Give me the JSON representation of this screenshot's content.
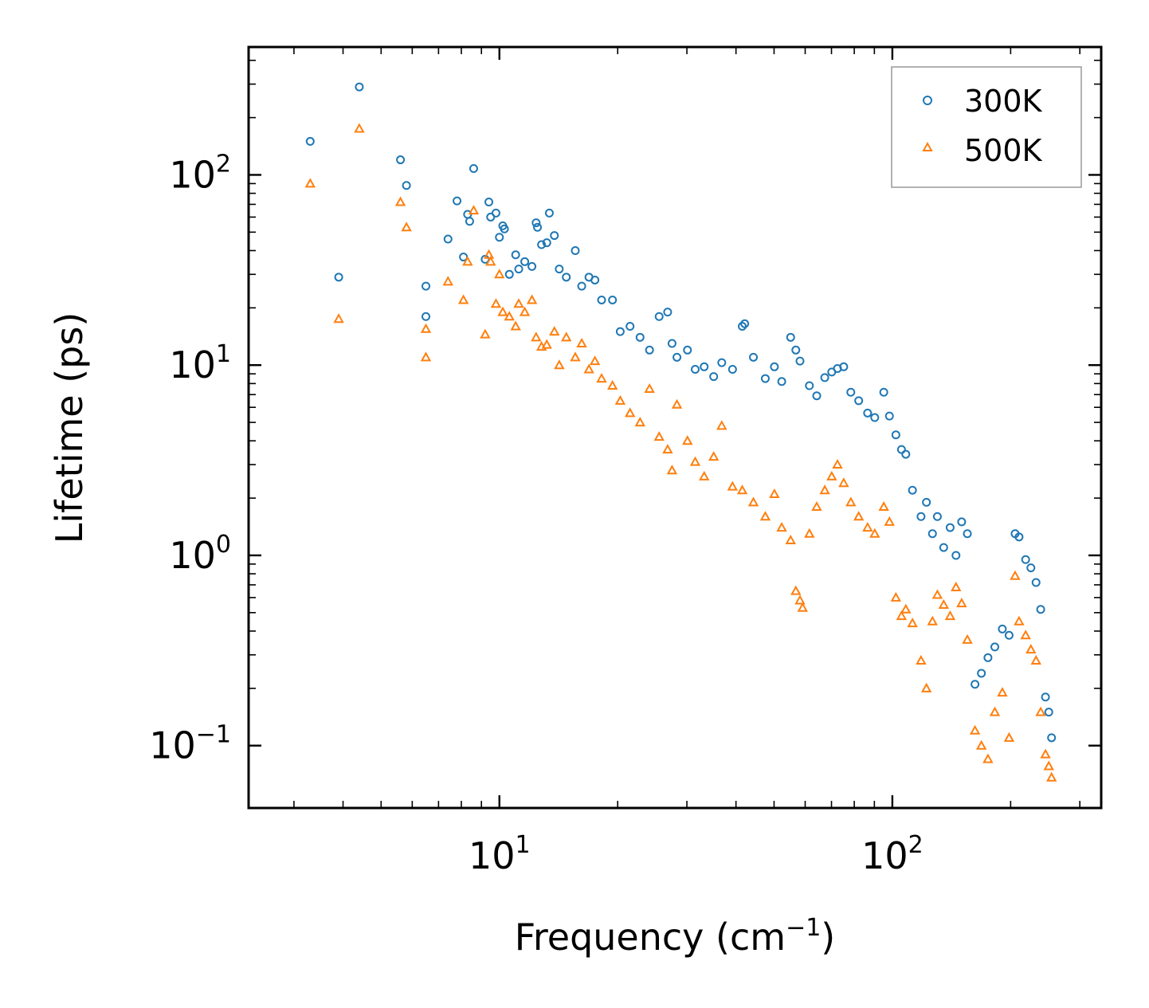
{
  "chart_data": {
    "type": "scatter",
    "xscale": "log",
    "yscale": "log",
    "xlim": [
      2.3,
      340
    ],
    "ylim": [
      0.047,
      470
    ],
    "xlabel": "Frequency (cm",
    "xlabel_sup": "−1",
    "xlabel_tail": ")",
    "ylabel": "Lifetime (ps)",
    "x_ticks": [
      {
        "value": 10,
        "base": "10",
        "exp": "1"
      },
      {
        "value": 100,
        "base": "10",
        "exp": "2"
      }
    ],
    "y_ticks": [
      {
        "value": 0.1,
        "base": "10",
        "exp": "−1"
      },
      {
        "value": 1,
        "base": "10",
        "exp": "0"
      },
      {
        "value": 10,
        "base": "10",
        "exp": "1"
      },
      {
        "value": 100,
        "base": "10",
        "exp": "2"
      }
    ],
    "legend_position": "top-right",
    "series": [
      {
        "name": "300K",
        "marker": "circle",
        "color": "#1f77b4",
        "points": [
          [
            3.3,
            150
          ],
          [
            3.9,
            29
          ],
          [
            4.4,
            290
          ],
          [
            5.6,
            120
          ],
          [
            5.8,
            88
          ],
          [
            6.5,
            26
          ],
          [
            6.5,
            18
          ],
          [
            7.4,
            46
          ],
          [
            7.8,
            73
          ],
          [
            8.1,
            37
          ],
          [
            8.3,
            62
          ],
          [
            8.4,
            57
          ],
          [
            8.6,
            108
          ],
          [
            9.2,
            36
          ],
          [
            9.4,
            72
          ],
          [
            9.5,
            60
          ],
          [
            9.8,
            63
          ],
          [
            10.0,
            47
          ],
          [
            10.2,
            54
          ],
          [
            10.3,
            52
          ],
          [
            10.6,
            30
          ],
          [
            11.0,
            38
          ],
          [
            11.2,
            32
          ],
          [
            11.6,
            35
          ],
          [
            12.1,
            33
          ],
          [
            12.4,
            56
          ],
          [
            12.5,
            53
          ],
          [
            12.8,
            43
          ],
          [
            13.2,
            44
          ],
          [
            13.4,
            63
          ],
          [
            13.8,
            48
          ],
          [
            14.2,
            32
          ],
          [
            14.8,
            29
          ],
          [
            15.6,
            40
          ],
          [
            16.2,
            26
          ],
          [
            16.9,
            29
          ],
          [
            17.5,
            28
          ],
          [
            18.2,
            22
          ],
          [
            19.4,
            22
          ],
          [
            20.3,
            15
          ],
          [
            21.5,
            16
          ],
          [
            22.8,
            14
          ],
          [
            24.1,
            12
          ],
          [
            25.5,
            18
          ],
          [
            26.8,
            19
          ],
          [
            27.5,
            13
          ],
          [
            28.3,
            11
          ],
          [
            30.1,
            12
          ],
          [
            31.5,
            9.5
          ],
          [
            33.2,
            9.8
          ],
          [
            35.1,
            8.7
          ],
          [
            36.8,
            10.3
          ],
          [
            39.2,
            9.5
          ],
          [
            41.5,
            16
          ],
          [
            42.1,
            16.5
          ],
          [
            44.3,
            11
          ],
          [
            47.5,
            8.5
          ],
          [
            50.1,
            9.8
          ],
          [
            52.3,
            8.2
          ],
          [
            55.1,
            14
          ],
          [
            56.8,
            12
          ],
          [
            58.2,
            10.5
          ],
          [
            61.5,
            7.8
          ],
          [
            64.2,
            6.9
          ],
          [
            67.3,
            8.6
          ],
          [
            70.1,
            9.2
          ],
          [
            72.5,
            9.6
          ],
          [
            75.2,
            9.8
          ],
          [
            78.4,
            7.2
          ],
          [
            82.1,
            6.5
          ],
          [
            86.5,
            5.6
          ],
          [
            90.2,
            5.3
          ],
          [
            95.1,
            7.2
          ],
          [
            98.3,
            5.4
          ],
          [
            102.1,
            4.3
          ],
          [
            105.5,
            3.6
          ],
          [
            108.2,
            3.4
          ],
          [
            112.5,
            2.2
          ],
          [
            118.3,
            1.6
          ],
          [
            122.1,
            1.9
          ],
          [
            126.5,
            1.3
          ],
          [
            130.2,
            1.6
          ],
          [
            135.1,
            1.1
          ],
          [
            140.3,
            1.4
          ],
          [
            145.2,
            1.0
          ],
          [
            150.1,
            1.5
          ],
          [
            155.2,
            1.3
          ],
          [
            162.3,
            0.21
          ],
          [
            168.5,
            0.24
          ],
          [
            175.1,
            0.29
          ],
          [
            182.3,
            0.33
          ],
          [
            190.5,
            0.41
          ],
          [
            198.2,
            0.38
          ],
          [
            205.3,
            1.3
          ],
          [
            210.1,
            1.25
          ],
          [
            218.4,
            0.95
          ],
          [
            225.2,
            0.86
          ],
          [
            232.1,
            0.72
          ],
          [
            238.5,
            0.52
          ],
          [
            245.3,
            0.18
          ],
          [
            250.1,
            0.15
          ],
          [
            254.2,
            0.11
          ]
        ]
      },
      {
        "name": "500K",
        "marker": "triangle",
        "color": "#ff7f0e",
        "points": [
          [
            3.3,
            90
          ],
          [
            3.9,
            17.5
          ],
          [
            4.4,
            175
          ],
          [
            5.6,
            72
          ],
          [
            5.8,
            53
          ],
          [
            6.5,
            15.5
          ],
          [
            6.5,
            11
          ],
          [
            7.4,
            27.5
          ],
          [
            8.1,
            22
          ],
          [
            8.3,
            35
          ],
          [
            8.6,
            65
          ],
          [
            9.2,
            14.5
          ],
          [
            9.4,
            38
          ],
          [
            9.5,
            35
          ],
          [
            9.8,
            21
          ],
          [
            10.0,
            30
          ],
          [
            10.2,
            19
          ],
          [
            10.6,
            18
          ],
          [
            11.0,
            16
          ],
          [
            11.2,
            21
          ],
          [
            11.6,
            19
          ],
          [
            12.1,
            22
          ],
          [
            12.4,
            14
          ],
          [
            12.8,
            12.5
          ],
          [
            13.2,
            12.8
          ],
          [
            13.8,
            15
          ],
          [
            14.2,
            10
          ],
          [
            14.8,
            14
          ],
          [
            15.6,
            11
          ],
          [
            16.2,
            13
          ],
          [
            16.9,
            9.5
          ],
          [
            17.5,
            10.5
          ],
          [
            18.2,
            8.5
          ],
          [
            19.4,
            7.8
          ],
          [
            20.3,
            6.5
          ],
          [
            21.5,
            5.6
          ],
          [
            22.8,
            5.0
          ],
          [
            24.1,
            7.5
          ],
          [
            25.5,
            4.2
          ],
          [
            26.8,
            3.6
          ],
          [
            27.5,
            2.8
          ],
          [
            28.3,
            6.2
          ],
          [
            30.1,
            4.0
          ],
          [
            31.5,
            3.1
          ],
          [
            33.2,
            2.6
          ],
          [
            35.1,
            3.3
          ],
          [
            36.8,
            4.8
          ],
          [
            39.2,
            2.3
          ],
          [
            41.5,
            2.2
          ],
          [
            44.3,
            1.9
          ],
          [
            47.5,
            1.6
          ],
          [
            50.1,
            2.1
          ],
          [
            52.3,
            1.4
          ],
          [
            55.1,
            1.2
          ],
          [
            56.8,
            0.65
          ],
          [
            58.2,
            0.58
          ],
          [
            59.1,
            0.53
          ],
          [
            61.5,
            1.3
          ],
          [
            64.2,
            1.8
          ],
          [
            67.3,
            2.2
          ],
          [
            70.1,
            2.6
          ],
          [
            72.5,
            3.0
          ],
          [
            75.2,
            2.4
          ],
          [
            78.4,
            1.9
          ],
          [
            82.1,
            1.6
          ],
          [
            86.5,
            1.4
          ],
          [
            90.2,
            1.3
          ],
          [
            95.1,
            1.8
          ],
          [
            98.3,
            1.5
          ],
          [
            102.1,
            0.6
          ],
          [
            105.5,
            0.48
          ],
          [
            108.2,
            0.52
          ],
          [
            112.5,
            0.44
          ],
          [
            118.3,
            0.28
          ],
          [
            122.1,
            0.2
          ],
          [
            126.5,
            0.45
          ],
          [
            130.2,
            0.62
          ],
          [
            135.1,
            0.55
          ],
          [
            140.3,
            0.48
          ],
          [
            145.2,
            0.68
          ],
          [
            150.1,
            0.56
          ],
          [
            155.2,
            0.36
          ],
          [
            162.3,
            0.12
          ],
          [
            168.5,
            0.1
          ],
          [
            175.1,
            0.085
          ],
          [
            182.3,
            0.15
          ],
          [
            190.5,
            0.19
          ],
          [
            198.2,
            0.11
          ],
          [
            205.3,
            0.78
          ],
          [
            210.1,
            0.45
          ],
          [
            218.4,
            0.38
          ],
          [
            225.2,
            0.32
          ],
          [
            232.1,
            0.28
          ],
          [
            238.5,
            0.15
          ],
          [
            245.3,
            0.09
          ],
          [
            250.1,
            0.078
          ],
          [
            254.2,
            0.068
          ]
        ]
      }
    ]
  }
}
